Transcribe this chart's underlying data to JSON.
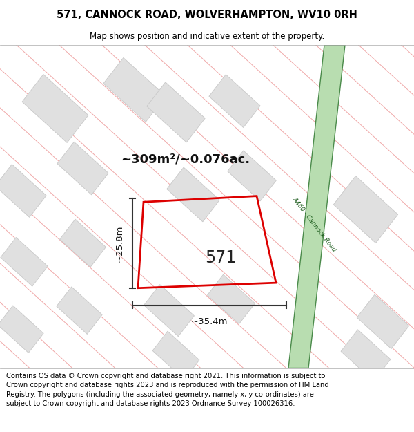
{
  "title_line1": "571, CANNOCK ROAD, WOLVERHAMPTON, WV10 0RH",
  "title_line2": "Map shows position and indicative extent of the property.",
  "footer_text": "Contains OS data © Crown copyright and database right 2021. This information is subject to Crown copyright and database rights 2023 and is reproduced with the permission of HM Land Registry. The polygons (including the associated geometry, namely x, y co-ordinates) are subject to Crown copyright and database rights 2023 Ordnance Survey 100026316.",
  "property_label": "571",
  "area_label": "~309m²/~0.076ac.",
  "width_label": "~35.4m",
  "height_label": "~25.8m",
  "road_label": "A460 - Cannock Road",
  "map_bg": "#ffffff",
  "road_color": "#b8ddb0",
  "road_border_color": "#4a8a4a",
  "plot_color_edge": "#dd0000",
  "building_fill": "#e0e0e0",
  "building_edge": "#c8c8c8",
  "pink_line_color": "#f0a8a8",
  "title_fontsize": 10.5,
  "subtitle_fontsize": 8.5,
  "footer_fontsize": 7.2,
  "dim_line_color": "#333333",
  "label_color": "#111111"
}
